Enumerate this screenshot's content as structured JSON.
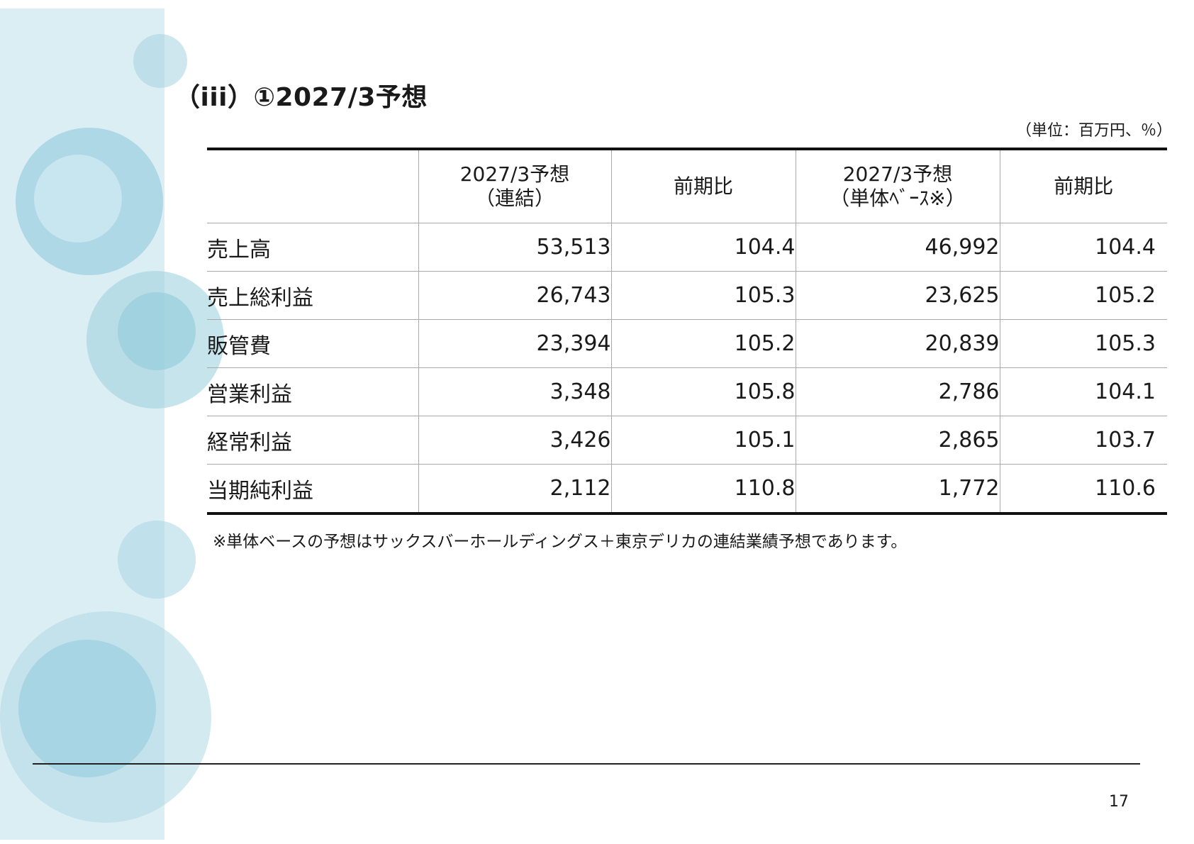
{
  "slide": {
    "title": "（iii）①2027/3予想",
    "unit_note": "（単位：百万円、％）",
    "footnote": "※単体ベースの予想はサックスバーホールディングス＋東京デリカの連結業績予想であります。",
    "page_number": "17"
  },
  "table": {
    "headers": [
      {
        "line1": "",
        "line2": ""
      },
      {
        "line1": "2027/3予想",
        "line2": "（連結）"
      },
      {
        "line1": "前期比",
        "line2": ""
      },
      {
        "line1": "2027/3予想",
        "line2": "（単体ﾍﾞｰｽ※）"
      },
      {
        "line1": "前期比",
        "line2": ""
      }
    ],
    "rows": [
      [
        "売上高",
        "53,513",
        "104.4",
        "46,992",
        "104.4"
      ],
      [
        "売上総利益",
        "26,743",
        "105.3",
        "23,625",
        "105.2"
      ],
      [
        "販管費",
        "23,394",
        "105.2",
        "20,839",
        "105.3"
      ],
      [
        "営業利益",
        "3,348",
        "105.8",
        "2,786",
        "104.1"
      ],
      [
        "経常利益",
        "3,426",
        "105.1",
        "2,865",
        "103.7"
      ],
      [
        "当期純利益",
        "2,112",
        "110.8",
        "1,772",
        "110.6"
      ]
    ]
  },
  "colors": {
    "sidebar": "#dbeef3",
    "circle_light": "#c3e3ec",
    "circle_mid": "#a9d6e2",
    "rule": "#111111"
  }
}
